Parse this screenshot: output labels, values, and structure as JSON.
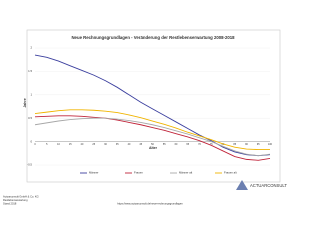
{
  "chart_data": {
    "type": "line",
    "title": "Neue Rechnungsgrundlagen - Veränderung der Restlebenserwartung 2008-2018",
    "y_label": "Jahre",
    "x_label": "Alter",
    "categories": [
      0,
      5,
      10,
      15,
      20,
      25,
      30,
      35,
      40,
      45,
      50,
      55,
      60,
      65,
      70,
      75,
      80,
      85,
      90,
      95,
      100
    ],
    "ylim": [
      -0.5,
      2.0
    ],
    "yticks": [
      -0.5,
      0,
      0.5,
      1,
      1.5,
      2
    ],
    "grid": true,
    "legend": "bottom",
    "series": [
      {
        "name": "Männer",
        "color": "#3b3f9e",
        "values": [
          1.85,
          1.8,
          1.72,
          1.62,
          1.52,
          1.42,
          1.3,
          1.16,
          1.0,
          0.84,
          0.7,
          0.56,
          0.42,
          0.28,
          0.14,
          0.02,
          -0.12,
          -0.22,
          -0.28,
          -0.3,
          -0.28
        ]
      },
      {
        "name": "Frauen",
        "color": "#c0243a",
        "values": [
          0.53,
          0.54,
          0.55,
          0.55,
          0.54,
          0.52,
          0.5,
          0.46,
          0.41,
          0.36,
          0.3,
          0.24,
          0.17,
          0.1,
          0.02,
          -0.08,
          -0.2,
          -0.32,
          -0.38,
          -0.4,
          -0.36
        ]
      },
      {
        "name": "Männer alt",
        "color": "#a8a8a8",
        "values": [
          0.36,
          0.4,
          0.44,
          0.47,
          0.49,
          0.5,
          0.5,
          0.48,
          0.45,
          0.41,
          0.36,
          0.3,
          0.23,
          0.16,
          0.08,
          0.0,
          -0.1,
          -0.2,
          -0.27,
          -0.3,
          -0.27
        ]
      },
      {
        "name": "Frauen alt",
        "color": "#f0b400",
        "values": [
          0.6,
          0.63,
          0.66,
          0.68,
          0.68,
          0.67,
          0.65,
          0.62,
          0.57,
          0.51,
          0.44,
          0.37,
          0.29,
          0.2,
          0.12,
          0.04,
          -0.05,
          -0.12,
          -0.16,
          -0.17,
          -0.17
        ]
      }
    ]
  },
  "logo": "ACTUARCONSULT",
  "footer": {
    "left": [
      "Actuarconsult GmbH & Co. KG",
      "Restlebenserwartung",
      "Stand 2018"
    ],
    "center": "https://www.actuarconsult.de/neue-rechnungsgrundlagen"
  }
}
